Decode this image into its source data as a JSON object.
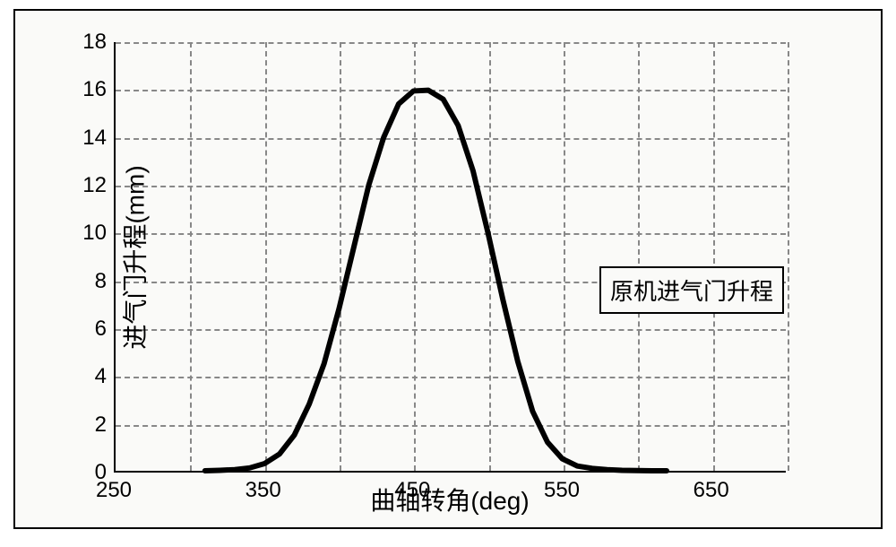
{
  "chart": {
    "type": "line",
    "background_color": "#fafaf8",
    "frame_border_color": "#000000",
    "axis_color": "#000000",
    "grid_color": "#888888",
    "grid_dash": "8,6",
    "line_color": "#000000",
    "line_width": 6,
    "ylabel": "进气门升程(mm)",
    "xlabel": "曲轴转角(deg)",
    "label_fontsize": 28,
    "tick_fontsize": 24,
    "legend_label": "原机进气门升程",
    "legend_fontsize": 26,
    "xlim": [
      250,
      700
    ],
    "ylim": [
      0,
      18
    ],
    "xticks": [
      250,
      350,
      450,
      550,
      650
    ],
    "yticks": [
      0,
      2,
      4,
      6,
      8,
      10,
      12,
      14,
      16,
      18
    ],
    "x_grid_at": [
      300,
      350,
      400,
      450,
      500,
      550,
      600,
      650,
      700
    ],
    "y_grid_at": [
      2,
      4,
      6,
      8,
      10,
      12,
      14,
      16,
      18
    ],
    "series": {
      "x": [
        310,
        320,
        330,
        340,
        350,
        360,
        370,
        380,
        390,
        400,
        410,
        420,
        430,
        440,
        450,
        460,
        470,
        480,
        490,
        500,
        510,
        520,
        530,
        540,
        550,
        560,
        570,
        580,
        590,
        600,
        610,
        620
      ],
      "y": [
        0.0,
        0.02,
        0.05,
        0.12,
        0.3,
        0.7,
        1.5,
        2.8,
        4.5,
        6.8,
        9.4,
        12.0,
        14.0,
        15.4,
        15.95,
        15.98,
        15.6,
        14.5,
        12.6,
        10.0,
        7.2,
        4.6,
        2.5,
        1.2,
        0.5,
        0.2,
        0.1,
        0.05,
        0.02,
        0.01,
        0.0,
        0.0
      ]
    }
  }
}
